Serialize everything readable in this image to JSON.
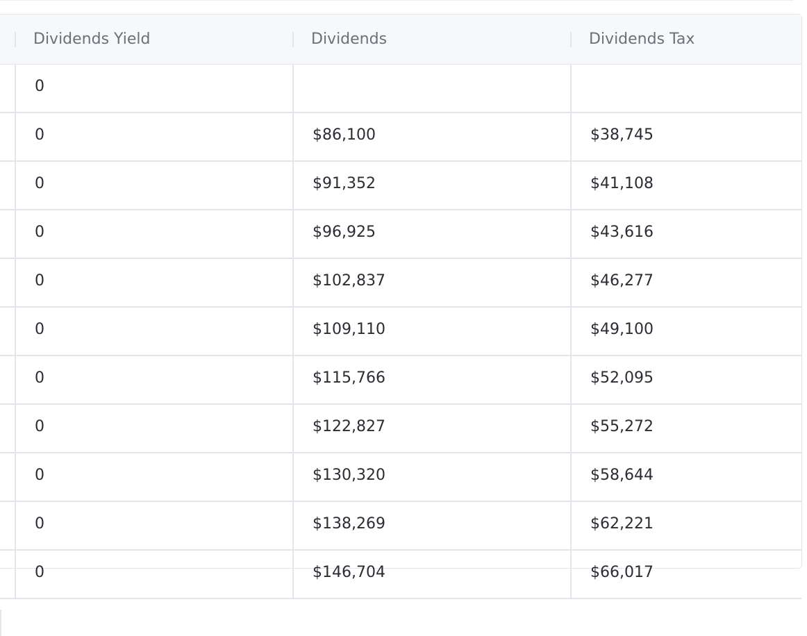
{
  "table": {
    "columns": [
      "Dividends Yield",
      "Dividends",
      "Dividends Tax"
    ],
    "rows": [
      [
        "0",
        "",
        ""
      ],
      [
        "0",
        "$86,100",
        "$38,745"
      ],
      [
        "0",
        "$91,352",
        "$41,108"
      ],
      [
        "0",
        "$96,925",
        "$43,616"
      ],
      [
        "0",
        "$102,837",
        "$46,277"
      ],
      [
        "0",
        "$109,110",
        "$49,100"
      ],
      [
        "0",
        "$115,766",
        "$52,095"
      ],
      [
        "0",
        "$122,827",
        "$55,272"
      ],
      [
        "0",
        "$130,320",
        "$58,644"
      ],
      [
        "0",
        "$138,269",
        "$62,221"
      ],
      [
        "0",
        "$146,704",
        "$66,017"
      ]
    ]
  }
}
